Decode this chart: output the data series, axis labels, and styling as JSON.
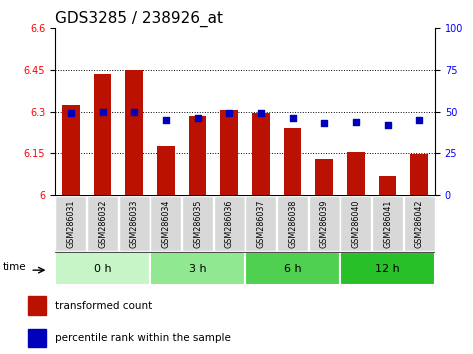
{
  "title": "GDS3285 / 238926_at",
  "samples": [
    "GSM286031",
    "GSM286032",
    "GSM286033",
    "GSM286034",
    "GSM286035",
    "GSM286036",
    "GSM286037",
    "GSM286038",
    "GSM286039",
    "GSM286040",
    "GSM286041",
    "GSM286042"
  ],
  "transformed_count": [
    6.325,
    6.435,
    6.45,
    6.175,
    6.285,
    6.305,
    6.295,
    6.24,
    6.13,
    6.155,
    6.07,
    6.148
  ],
  "percentile_rank": [
    49,
    50,
    50,
    45,
    46,
    49,
    49,
    46,
    43,
    44,
    42,
    45
  ],
  "groups": [
    {
      "label": "0 h",
      "start": 0,
      "end": 3,
      "color": "#c8f5c8"
    },
    {
      "label": "3 h",
      "start": 3,
      "end": 6,
      "color": "#90e890"
    },
    {
      "label": "6 h",
      "start": 6,
      "end": 9,
      "color": "#50d050"
    },
    {
      "label": "12 h",
      "start": 9,
      "end": 12,
      "color": "#28c028"
    }
  ],
  "bar_color": "#bb1100",
  "dot_color": "#0000bb",
  "ylim_left": [
    6.0,
    6.6
  ],
  "ylim_right": [
    0,
    100
  ],
  "yticks_left": [
    6.0,
    6.15,
    6.3,
    6.45,
    6.6
  ],
  "yticks_right": [
    0,
    25,
    50,
    75,
    100
  ],
  "hlines": [
    6.15,
    6.3,
    6.45
  ],
  "legend_items": [
    {
      "label": "transformed count",
      "color": "#bb1100"
    },
    {
      "label": "percentile rank within the sample",
      "color": "#0000bb"
    }
  ],
  "title_fontsize": 11,
  "tick_fontsize": 7,
  "bar_width": 0.55,
  "sample_bg_color": "#d8d8d8",
  "sample_border_color": "#ffffff"
}
